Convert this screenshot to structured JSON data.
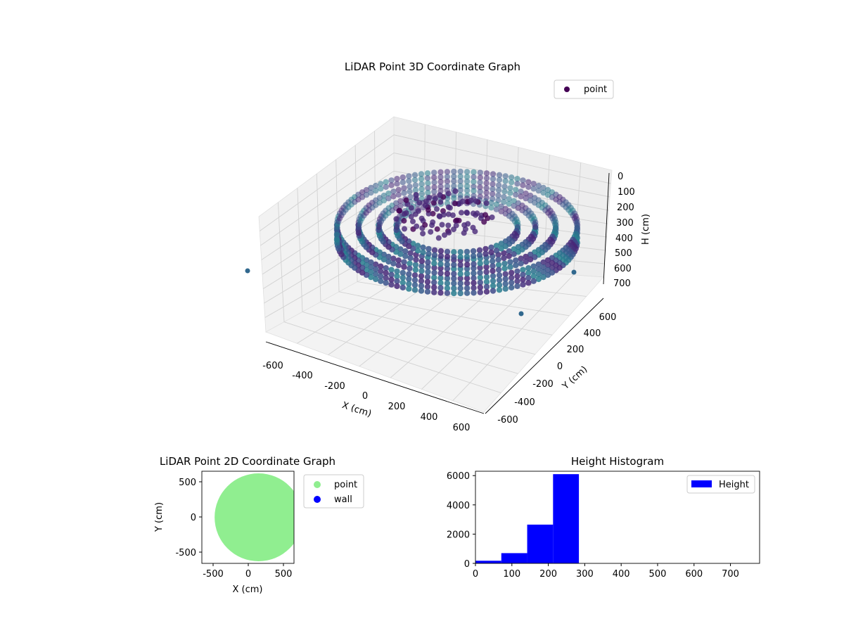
{
  "chart_data": [
    {
      "type": "scatter3d",
      "title": "LiDAR Point 3D Coordinate Graph",
      "xlabel": "X (cm)",
      "ylabel": "Y (cm)",
      "zlabel": "H (cm)",
      "xlim": [
        -650,
        650
      ],
      "ylim": [
        -650,
        650
      ],
      "zlim": [
        750,
        0
      ],
      "x_ticks": [
        -600,
        -400,
        -200,
        0,
        200,
        400,
        600
      ],
      "y_ticks": [
        -600,
        -400,
        -200,
        0,
        200,
        400,
        600
      ],
      "z_ticks": [
        0,
        100,
        200,
        300,
        400,
        500,
        600,
        700
      ],
      "legend": [
        "point"
      ],
      "legend_position": "top-right",
      "grid": true,
      "colormap": "viridis",
      "outlier_points": [
        {
          "x": -640,
          "y": -150,
          "h": 560
        },
        {
          "x": 560,
          "y": 250,
          "h": 640
        },
        {
          "x": 320,
          "y": -500,
          "h": 380
        }
      ],
      "colors": {
        "purple": "#440154",
        "blue": "#31688e",
        "teal": "#35b779"
      }
    },
    {
      "type": "scatter",
      "title": "LiDAR Point 2D Coordinate Graph",
      "xlabel": "X (cm)",
      "ylabel": "Y (cm)",
      "xlim": [
        -650,
        650
      ],
      "ylim": [
        -650,
        650
      ],
      "x_ticks": [
        -500,
        0,
        500
      ],
      "y_ticks": [
        -500,
        0,
        500
      ],
      "series": [
        {
          "name": "point",
          "color": "#90ee90",
          "shape": "disk",
          "center": [
            150,
            0
          ],
          "radius": 620
        },
        {
          "name": "wall",
          "color": "#0000ff"
        }
      ],
      "legend_position": "outside-right"
    },
    {
      "type": "bar",
      "title": "Height Histogram",
      "xlim": [
        0,
        780
      ],
      "ylim": [
        0,
        6300
      ],
      "x_ticks": [
        0,
        100,
        200,
        300,
        400,
        500,
        600,
        700
      ],
      "y_ticks": [
        0,
        2000,
        4000,
        6000
      ],
      "bins": [
        {
          "x0": 0,
          "x1": 71,
          "count": 180
        },
        {
          "x0": 71,
          "x1": 142,
          "count": 700
        },
        {
          "x0": 142,
          "x1": 213,
          "count": 2650
        },
        {
          "x0": 213,
          "x1": 284,
          "count": 6100
        }
      ],
      "series": [
        {
          "name": "Height",
          "color": "#0000ff"
        }
      ],
      "legend_position": "top-right"
    }
  ]
}
